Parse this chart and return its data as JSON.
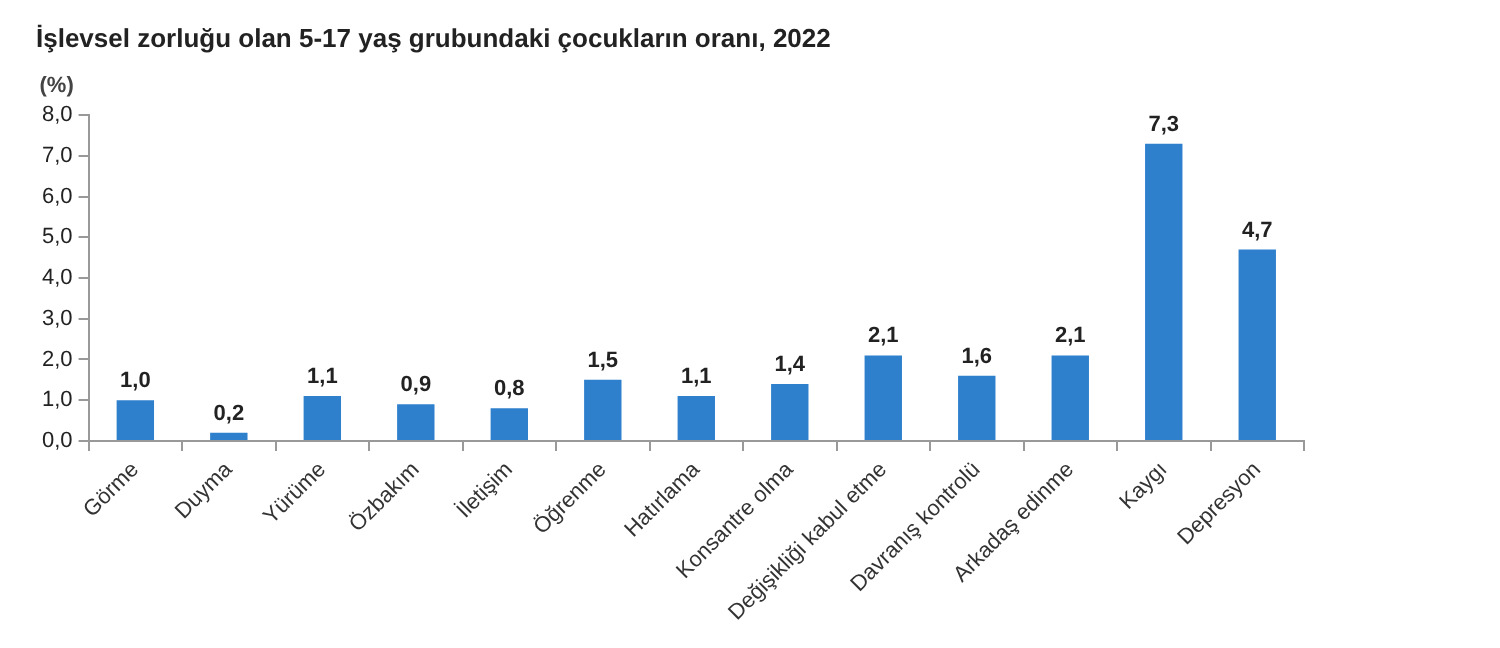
{
  "chart_data": {
    "type": "bar",
    "title": "İşlevsel zorluğu olan 5-17 yaş grubundaki çocukların oranı, 2022",
    "ylabel": "(%)",
    "categories": [
      "Görme",
      "Duyma",
      "Yürüme",
      "Özbakım",
      "İletişim",
      "Öğrenme",
      "Hatırlama",
      "Konsantre olma",
      "Değişikliği kabul etme",
      "Davranış kontrolü",
      "Arkadaş edinme",
      "Kaygı",
      "Depresyon"
    ],
    "values": [
      1.0,
      0.2,
      1.1,
      0.9,
      0.8,
      1.5,
      1.1,
      1.4,
      2.1,
      1.6,
      2.1,
      7.3,
      4.7
    ],
    "value_labels": [
      "1,0",
      "0,2",
      "1,1",
      "0,9",
      "0,8",
      "1,5",
      "1,1",
      "1,4",
      "2,1",
      "1,6",
      "2,1",
      "7,3",
      "4,7"
    ],
    "color": "#2f80cc",
    "ylim": [
      0,
      8
    ],
    "yticks": [
      {
        "value": 0,
        "label": "0,0"
      },
      {
        "value": 1,
        "label": "1,0"
      },
      {
        "value": 2,
        "label": "2,0"
      },
      {
        "value": 3,
        "label": "3,0"
      },
      {
        "value": 4,
        "label": "4,0"
      },
      {
        "value": 5,
        "label": "5,0"
      },
      {
        "value": 6,
        "label": "6,0"
      },
      {
        "value": 7,
        "label": "7,0"
      },
      {
        "value": 8,
        "label": "8,0"
      }
    ],
    "grid": false,
    "legend": false
  }
}
